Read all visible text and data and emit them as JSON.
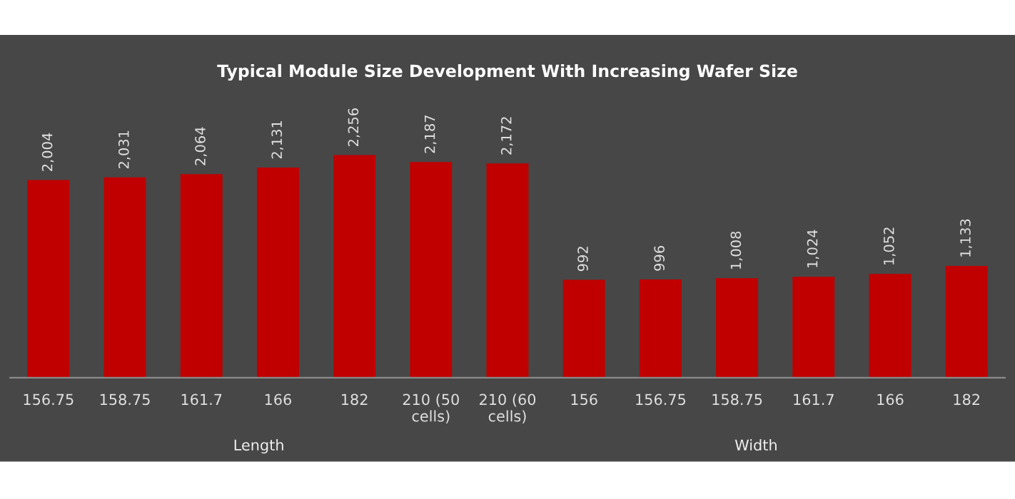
{
  "chart_data": {
    "type": "bar",
    "title": "Typical Module Size Development With Increasing Wafer Size",
    "categories": [
      "156.75",
      "158.75",
      "161.7",
      "166",
      "182",
      "210 (50 cells)",
      "210 (60 cells)",
      "156",
      "156.75",
      "158.75",
      "161.7",
      "166",
      "182"
    ],
    "values": [
      2004,
      2031,
      2064,
      2131,
      2256,
      2187,
      2172,
      992,
      996,
      1008,
      1024,
      1052,
      1133
    ],
    "value_labels": [
      "2,004",
      "2,031",
      "2,064",
      "2,131",
      "2,256",
      "2,187",
      "2,172",
      "992",
      "996",
      "1,008",
      "1,024",
      "1,052",
      "1,133"
    ],
    "color": "#c00000",
    "annotations": [
      "Length",
      "Width"
    ],
    "grid": false,
    "legend": false
  }
}
